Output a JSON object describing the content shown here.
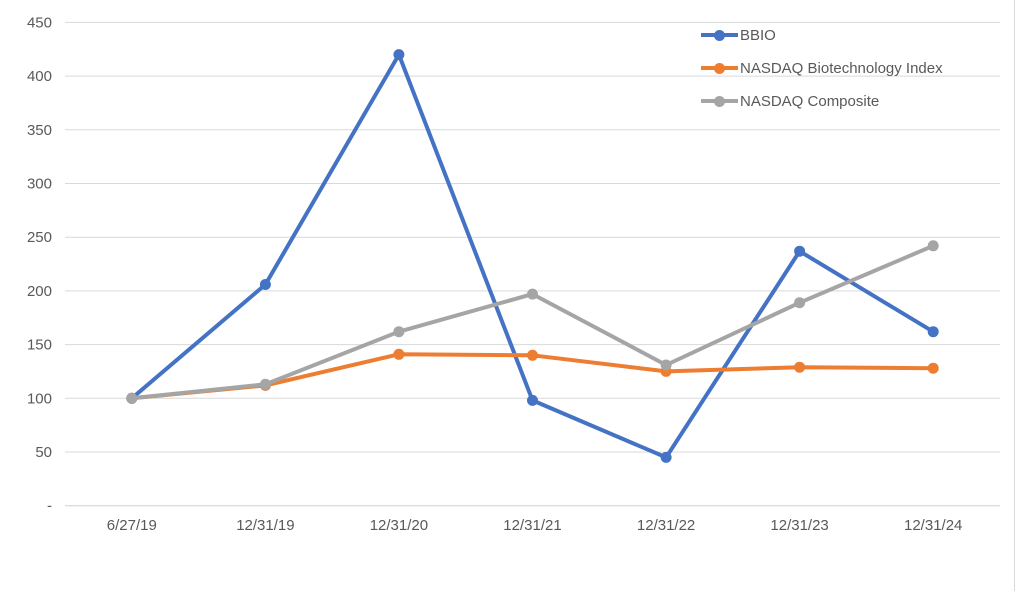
{
  "chart_data": {
    "type": "line",
    "title": "",
    "xlabel": "",
    "ylabel": "",
    "categories": [
      "6/27/19",
      "12/31/19",
      "12/31/20",
      "12/31/21",
      "12/31/22",
      "12/31/23",
      "12/31/24"
    ],
    "series": [
      {
        "name": "BBIO",
        "color": "#4472C4",
        "values": [
          100,
          206,
          420,
          98,
          45,
          237,
          162
        ]
      },
      {
        "name": "NASDAQ Biotechnology Index",
        "color": "#ED7D31",
        "values": [
          100,
          112,
          141,
          140,
          125,
          129,
          128
        ]
      },
      {
        "name": "NASDAQ Composite",
        "color": "#A5A5A5",
        "values": [
          100,
          113,
          162,
          197,
          131,
          189,
          242
        ]
      }
    ],
    "ylim": [
      0,
      450
    ],
    "y_ticks": [
      0,
      50,
      100,
      150,
      200,
      250,
      300,
      350,
      400,
      450
    ],
    "y_tick_labels": [
      "-",
      "50",
      "100",
      "150",
      "200",
      "250",
      "300",
      "350",
      "400",
      "450"
    ],
    "grid": true,
    "legend_position": "top-right",
    "marker": "circle"
  },
  "colors": {
    "background": "#FFFFFF",
    "gridline": "#D9D9D9",
    "axis_line": "#CFCFCF",
    "tick_label": "#595959",
    "legend_text": "#595959",
    "frame_edge": "#D9D9D9"
  }
}
